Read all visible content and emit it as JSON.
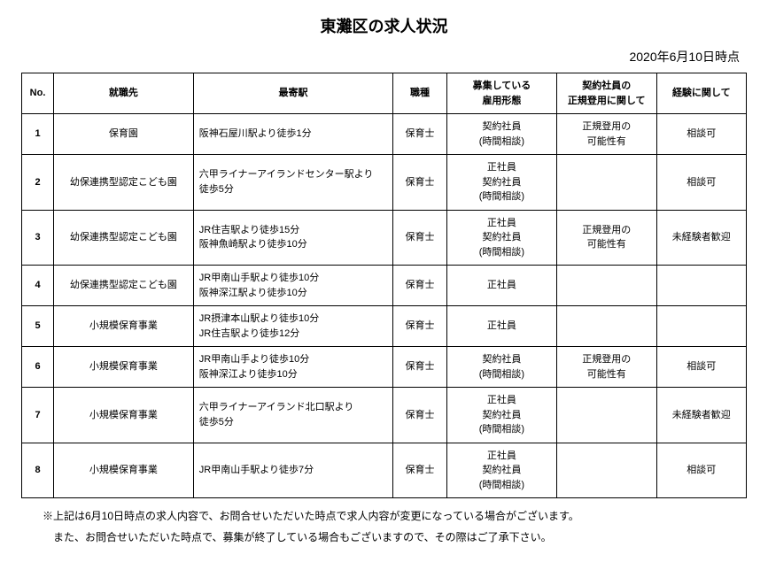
{
  "title": "東灘区の求人状況",
  "date": "2020年6月10日時点",
  "columns": [
    "No.",
    "就職先",
    "最寄駅",
    "職種",
    "募集している\n雇用形態",
    "契約社員の\n正規登用に関して",
    "経験に関して"
  ],
  "rows": [
    {
      "no": "1",
      "place": "保育園",
      "station": "阪神石屋川駅より徒歩1分",
      "type": "保育士",
      "employment": "契約社員\n(時間相談)",
      "contract": "正規登用の\n可能性有",
      "experience": "相談可"
    },
    {
      "no": "2",
      "place": "幼保連携型認定こども園",
      "station": "六甲ライナーアイランドセンター駅より\n徒歩5分",
      "type": "保育士",
      "employment": "正社員\n契約社員\n(時間相談)",
      "contract": "",
      "experience": "相談可"
    },
    {
      "no": "3",
      "place": "幼保連携型認定こども園",
      "station": "JR住吉駅より徒歩15分\n阪神魚崎駅より徒歩10分",
      "type": "保育士",
      "employment": "正社員\n契約社員\n(時間相談)",
      "contract": "正規登用の\n可能性有",
      "experience": "未経験者歓迎"
    },
    {
      "no": "4",
      "place": "幼保連携型認定こども園",
      "station": "JR甲南山手駅より徒歩10分\n阪神深江駅より徒歩10分",
      "type": "保育士",
      "employment": "正社員",
      "contract": "",
      "experience": ""
    },
    {
      "no": "5",
      "place": "小規模保育事業",
      "station": "JR摂津本山駅より徒歩10分\nJR住吉駅より徒歩12分",
      "type": "保育士",
      "employment": "正社員",
      "contract": "",
      "experience": ""
    },
    {
      "no": "6",
      "place": "小規模保育事業",
      "station": "JR甲南山手より徒歩10分\n阪神深江より徒歩10分",
      "type": "保育士",
      "employment": "契約社員\n(時間相談)",
      "contract": "正規登用の\n可能性有",
      "experience": "相談可"
    },
    {
      "no": "7",
      "place": "小規模保育事業",
      "station": "六甲ライナーアイランド北口駅より\n徒歩5分",
      "type": "保育士",
      "employment": "正社員\n契約社員\n(時間相談)",
      "contract": "",
      "experience": "未経験者歓迎"
    },
    {
      "no": "8",
      "place": "小規模保育事業",
      "station": "JR甲南山手駅より徒歩7分",
      "type": "保育士",
      "employment": "正社員\n契約社員\n(時間相談)",
      "contract": "",
      "experience": "相談可"
    }
  ],
  "notes": [
    "※上記は6月10日時点の求人内容で、お問合せいただいた時点で求人内容が変更になっている場合がございます。",
    "　また、お問合せいただいた時点で、募集が終了している場合もございますので、その際はご了承下さい。"
  ],
  "styling": {
    "background_color": "#ffffff",
    "text_color": "#000000",
    "border_color": "#000000",
    "title_fontsize": 18,
    "date_fontsize": 14,
    "table_fontsize": 11,
    "notes_fontsize": 12,
    "col_widths": {
      "no": 32,
      "place": 140,
      "station": 200,
      "type": 54,
      "employment": 110,
      "contract": 100,
      "experience": 90
    }
  }
}
